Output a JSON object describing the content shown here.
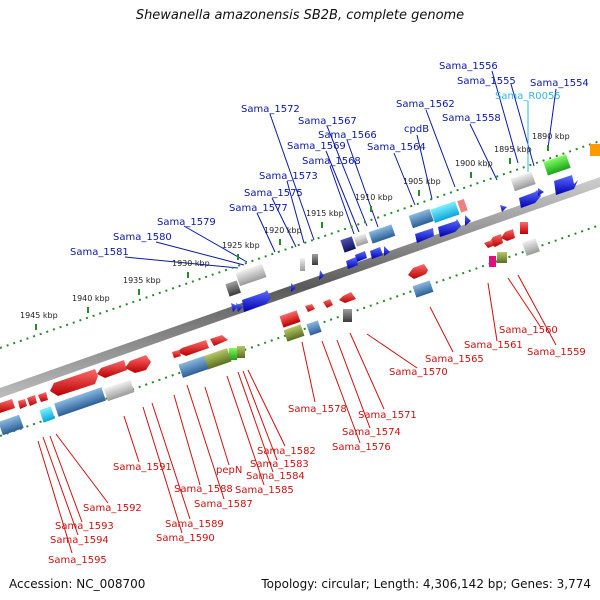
{
  "title": "Shewanella amazonensis SB2B, complete genome",
  "accession_text": "Accession: NC_008700",
  "summary_text": "Topology: circular; Length: 4,306,142 bp; Genes: 3,774",
  "colors": {
    "backbone": "#8c8c8c",
    "dotted_track": "#2a8a2a",
    "label_blue": "#0b18a8",
    "label_cyan": "#2fb8e0",
    "label_red": "#d01010"
  },
  "scale_ticks": [
    {
      "kbp": 1890,
      "text": "1890 kbp"
    },
    {
      "kbp": 1895,
      "text": "1895 kbp"
    },
    {
      "kbp": 1900,
      "text": "1900 kbp"
    },
    {
      "kbp": 1905,
      "text": "1905 kbp"
    },
    {
      "kbp": 1910,
      "text": "1910 kbp"
    },
    {
      "kbp": 1915,
      "text": "1915 kbp"
    },
    {
      "kbp": 1920,
      "text": "1920 kbp"
    },
    {
      "kbp": 1925,
      "text": "1925 kbp"
    },
    {
      "kbp": 1930,
      "text": "1930 kbp"
    },
    {
      "kbp": 1935,
      "text": "1935 kbp"
    },
    {
      "kbp": 1940,
      "text": "1940 kbp"
    },
    {
      "kbp": 1945,
      "text": "1945 kbp"
    }
  ],
  "top_strand_genes": [
    {
      "name": "Sama_1554",
      "color": "#0b18a8"
    },
    {
      "name": "Sama_1555",
      "color": "#0b18a8"
    },
    {
      "name": "Sama_1556",
      "color": "#0b18a8"
    },
    {
      "name": "Sama_R0055",
      "color": "#2fb8e0"
    },
    {
      "name": "Sama_1558",
      "color": "#0b18a8"
    },
    {
      "name": "Sama_1562",
      "color": "#0b18a8"
    },
    {
      "name": "cpdB",
      "color": "#0b18a8"
    },
    {
      "name": "Sama_1564",
      "color": "#0b18a8"
    },
    {
      "name": "Sama_1566",
      "color": "#0b18a8"
    },
    {
      "name": "Sama_1567",
      "color": "#0b18a8"
    },
    {
      "name": "Sama_1568",
      "color": "#0b18a8"
    },
    {
      "name": "Sama_1569",
      "color": "#0b18a8"
    },
    {
      "name": "Sama_1572",
      "color": "#0b18a8"
    },
    {
      "name": "Sama_1573",
      "color": "#0b18a8"
    },
    {
      "name": "Sama_1575",
      "color": "#0b18a8"
    },
    {
      "name": "Sama_1577",
      "color": "#0b18a8"
    },
    {
      "name": "Sama_1579",
      "color": "#0b18a8"
    },
    {
      "name": "Sama_1580",
      "color": "#0b18a8"
    },
    {
      "name": "Sama_1581",
      "color": "#0b18a8"
    }
  ],
  "bottom_strand_genes": [
    {
      "name": "Sama_1559"
    },
    {
      "name": "Sama_1560"
    },
    {
      "name": "Sama_1561"
    },
    {
      "name": "Sama_1565"
    },
    {
      "name": "Sama_1570"
    },
    {
      "name": "Sama_1571"
    },
    {
      "name": "Sama_1574"
    },
    {
      "name": "Sama_1576"
    },
    {
      "name": "Sama_1578"
    },
    {
      "name": "Sama_1582"
    },
    {
      "name": "Sama_1583"
    },
    {
      "name": "Sama_1584"
    },
    {
      "name": "Sama_1585"
    },
    {
      "name": "Sama_1587"
    },
    {
      "name": "pepN"
    },
    {
      "name": "Sama_1588"
    },
    {
      "name": "Sama_1589"
    },
    {
      "name": "Sama_1590"
    },
    {
      "name": "Sama_1591"
    },
    {
      "name": "Sama_1592"
    },
    {
      "name": "Sama_1593"
    },
    {
      "name": "Sama_1594"
    },
    {
      "name": "Sama_1595"
    }
  ]
}
